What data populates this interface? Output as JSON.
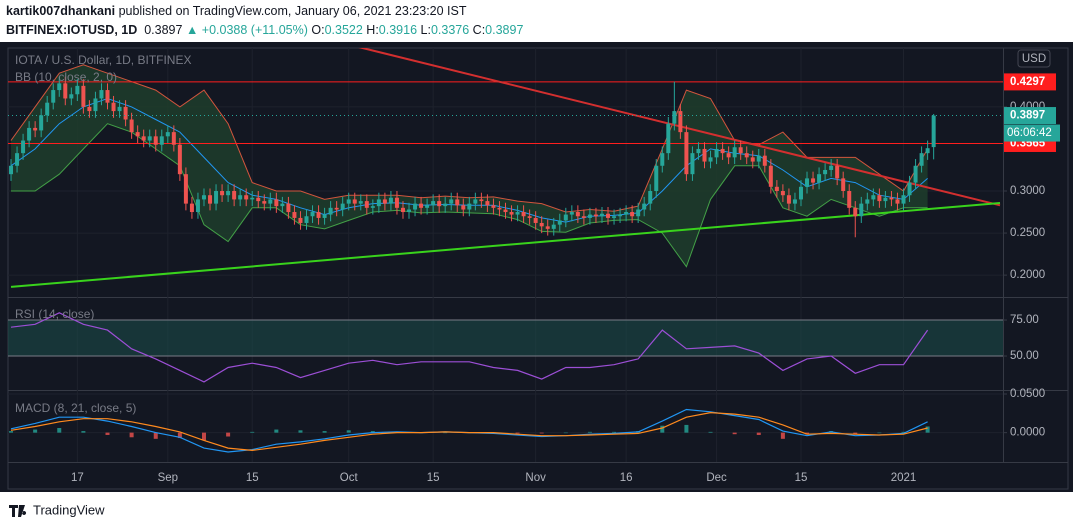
{
  "header": {
    "author": "kartik007dhankani",
    "published": "published on TradingView.com, January 06, 2021 23:23:20 IST",
    "symbol": "BITFINEX:IOTUSD, 1D",
    "change": "▲ +0.0388 (+11.05%)",
    "ohlc_labels": [
      "O:",
      "H:",
      "L:",
      "C:"
    ]
  },
  "footer": {
    "brand": "TradingView"
  },
  "chart_data": [
    {
      "type": "candlestick",
      "title": "IOTA / U.S. Dollar, 1D, BITFINEX",
      "indicator": "BB (10, close, 2, 0)",
      "currency": "USD",
      "countdown": "06:06:42",
      "up_color": "#26a69a",
      "down_color": "#ef5350",
      "grid": true,
      "xlim": [
        -0.5,
        164.5
      ],
      "xticks": [
        {
          "value": 11,
          "label": "17"
        },
        {
          "value": 26,
          "label": "Sep"
        },
        {
          "value": 40,
          "label": "15"
        },
        {
          "value": 56,
          "label": "Oct"
        },
        {
          "value": 70,
          "label": "15"
        },
        {
          "value": 87,
          "label": "Nov"
        },
        {
          "value": 102,
          "label": "16"
        },
        {
          "value": 117,
          "label": "Dec"
        },
        {
          "value": 131,
          "label": "15"
        },
        {
          "value": 148,
          "label": "2021"
        }
      ],
      "ylim": [
        0.174,
        0.47
      ],
      "yticks": [
        {
          "value": 0.2,
          "label": "0.2000"
        },
        {
          "value": 0.25,
          "label": "0.2500"
        },
        {
          "value": 0.3,
          "label": "0.3000"
        },
        {
          "value": 0.4,
          "label": "0.4000"
        }
      ],
      "open": [
        0.32,
        0.33,
        0.345,
        0.36,
        0.375,
        0.372,
        0.39,
        0.405,
        0.42,
        0.428,
        0.41,
        0.415,
        0.425,
        0.4,
        0.395,
        0.41,
        0.42,
        0.405,
        0.395,
        0.4,
        0.385,
        0.37,
        0.365,
        0.36,
        0.365,
        0.355,
        0.365,
        0.37,
        0.355,
        0.32,
        0.285,
        0.275,
        0.29,
        0.295,
        0.285,
        0.3,
        0.295,
        0.3,
        0.29,
        0.295,
        0.29,
        0.292,
        0.288,
        0.285,
        0.29,
        0.282,
        0.285,
        0.275,
        0.268,
        0.262,
        0.27,
        0.275,
        0.268,
        0.272,
        0.28,
        0.278,
        0.285,
        0.29,
        0.285,
        0.288,
        0.28,
        0.282,
        0.29,
        0.285,
        0.292,
        0.28,
        0.275,
        0.278,
        0.285,
        0.28,
        0.283,
        0.288,
        0.282,
        0.285,
        0.29,
        0.283,
        0.278,
        0.285,
        0.29,
        0.288,
        0.283,
        0.28,
        0.278,
        0.275,
        0.272,
        0.275,
        0.27,
        0.268,
        0.262,
        0.258,
        0.255,
        0.26,
        0.265,
        0.272,
        0.275,
        0.27,
        0.268,
        0.272,
        0.27,
        0.273,
        0.268,
        0.27,
        0.272,
        0.275,
        0.27,
        0.278,
        0.285,
        0.3,
        0.33,
        0.345,
        0.38,
        0.395,
        0.37,
        0.32,
        0.345,
        0.35,
        0.335,
        0.34,
        0.35,
        0.345,
        0.34,
        0.352,
        0.345,
        0.34,
        0.335,
        0.342,
        0.33,
        0.305,
        0.3,
        0.295,
        0.285,
        0.29,
        0.305,
        0.315,
        0.31,
        0.32,
        0.325,
        0.33,
        0.315,
        0.3,
        0.28,
        0.27,
        0.285,
        0.29,
        0.295,
        0.288,
        0.292,
        0.29,
        0.285,
        0.295,
        0.31,
        0.33,
        0.345,
        0.3522
      ],
      "high": [
        0.338,
        0.353,
        0.368,
        0.383,
        0.383,
        0.398,
        0.413,
        0.428,
        0.436,
        0.436,
        0.423,
        0.433,
        0.433,
        0.408,
        0.418,
        0.428,
        0.428,
        0.413,
        0.408,
        0.408,
        0.393,
        0.378,
        0.373,
        0.373,
        0.373,
        0.373,
        0.378,
        0.378,
        0.363,
        0.328,
        0.293,
        0.298,
        0.303,
        0.303,
        0.308,
        0.308,
        0.308,
        0.308,
        0.303,
        0.303,
        0.3,
        0.3,
        0.296,
        0.298,
        0.298,
        0.293,
        0.293,
        0.283,
        0.276,
        0.278,
        0.283,
        0.283,
        0.28,
        0.288,
        0.288,
        0.293,
        0.298,
        0.298,
        0.296,
        0.296,
        0.29,
        0.298,
        0.298,
        0.3,
        0.3,
        0.288,
        0.286,
        0.293,
        0.293,
        0.291,
        0.296,
        0.296,
        0.293,
        0.298,
        0.298,
        0.291,
        0.293,
        0.298,
        0.298,
        0.296,
        0.291,
        0.288,
        0.286,
        0.283,
        0.283,
        0.283,
        0.278,
        0.276,
        0.27,
        0.266,
        0.268,
        0.273,
        0.28,
        0.283,
        0.283,
        0.278,
        0.28,
        0.28,
        0.281,
        0.281,
        0.278,
        0.28,
        0.283,
        0.283,
        0.286,
        0.293,
        0.308,
        0.338,
        0.353,
        0.388,
        0.43,
        0.403,
        0.378,
        0.353,
        0.358,
        0.358,
        0.348,
        0.358,
        0.358,
        0.353,
        0.36,
        0.36,
        0.353,
        0.348,
        0.35,
        0.35,
        0.338,
        0.313,
        0.308,
        0.303,
        0.298,
        0.313,
        0.323,
        0.323,
        0.328,
        0.333,
        0.338,
        0.338,
        0.323,
        0.308,
        0.288,
        0.293,
        0.298,
        0.303,
        0.303,
        0.3,
        0.3,
        0.298,
        0.303,
        0.318,
        0.338,
        0.353,
        0.36,
        0.3916
      ],
      "low": [
        0.312,
        0.322,
        0.337,
        0.352,
        0.364,
        0.364,
        0.382,
        0.397,
        0.412,
        0.402,
        0.402,
        0.407,
        0.392,
        0.387,
        0.387,
        0.402,
        0.397,
        0.387,
        0.387,
        0.377,
        0.362,
        0.357,
        0.352,
        0.352,
        0.347,
        0.347,
        0.357,
        0.347,
        0.312,
        0.277,
        0.267,
        0.267,
        0.282,
        0.277,
        0.277,
        0.287,
        0.287,
        0.282,
        0.282,
        0.282,
        0.282,
        0.28,
        0.277,
        0.277,
        0.274,
        0.274,
        0.267,
        0.26,
        0.254,
        0.254,
        0.262,
        0.26,
        0.26,
        0.264,
        0.27,
        0.27,
        0.277,
        0.277,
        0.277,
        0.272,
        0.272,
        0.274,
        0.277,
        0.277,
        0.272,
        0.267,
        0.267,
        0.27,
        0.272,
        0.272,
        0.275,
        0.274,
        0.274,
        0.277,
        0.275,
        0.27,
        0.27,
        0.277,
        0.28,
        0.275,
        0.272,
        0.27,
        0.267,
        0.264,
        0.264,
        0.262,
        0.26,
        0.254,
        0.25,
        0.247,
        0.247,
        0.252,
        0.257,
        0.264,
        0.262,
        0.26,
        0.26,
        0.262,
        0.262,
        0.26,
        0.26,
        0.262,
        0.264,
        0.262,
        0.262,
        0.27,
        0.277,
        0.292,
        0.322,
        0.337,
        0.372,
        0.362,
        0.312,
        0.312,
        0.337,
        0.327,
        0.327,
        0.332,
        0.337,
        0.332,
        0.332,
        0.337,
        0.332,
        0.327,
        0.327,
        0.322,
        0.297,
        0.292,
        0.287,
        0.277,
        0.277,
        0.282,
        0.297,
        0.302,
        0.302,
        0.312,
        0.317,
        0.307,
        0.292,
        0.272,
        0.245,
        0.262,
        0.277,
        0.282,
        0.28,
        0.28,
        0.282,
        0.277,
        0.277,
        0.287,
        0.302,
        0.322,
        0.337,
        0.3376
      ],
      "close": [
        0.33,
        0.345,
        0.36,
        0.375,
        0.372,
        0.39,
        0.405,
        0.42,
        0.428,
        0.41,
        0.415,
        0.425,
        0.4,
        0.395,
        0.41,
        0.42,
        0.405,
        0.395,
        0.4,
        0.385,
        0.37,
        0.365,
        0.36,
        0.365,
        0.355,
        0.365,
        0.37,
        0.355,
        0.32,
        0.285,
        0.275,
        0.29,
        0.295,
        0.285,
        0.3,
        0.295,
        0.3,
        0.29,
        0.295,
        0.29,
        0.292,
        0.288,
        0.285,
        0.29,
        0.282,
        0.285,
        0.275,
        0.268,
        0.262,
        0.27,
        0.275,
        0.268,
        0.272,
        0.28,
        0.278,
        0.285,
        0.29,
        0.285,
        0.288,
        0.28,
        0.282,
        0.29,
        0.285,
        0.292,
        0.28,
        0.275,
        0.278,
        0.285,
        0.28,
        0.283,
        0.288,
        0.282,
        0.285,
        0.29,
        0.283,
        0.278,
        0.285,
        0.29,
        0.288,
        0.283,
        0.28,
        0.278,
        0.275,
        0.272,
        0.275,
        0.27,
        0.268,
        0.262,
        0.258,
        0.255,
        0.26,
        0.265,
        0.272,
        0.275,
        0.27,
        0.268,
        0.272,
        0.27,
        0.273,
        0.268,
        0.27,
        0.272,
        0.275,
        0.27,
        0.278,
        0.285,
        0.3,
        0.33,
        0.345,
        0.38,
        0.395,
        0.37,
        0.32,
        0.345,
        0.35,
        0.335,
        0.34,
        0.35,
        0.345,
        0.34,
        0.352,
        0.345,
        0.34,
        0.335,
        0.342,
        0.33,
        0.305,
        0.3,
        0.295,
        0.285,
        0.29,
        0.305,
        0.315,
        0.31,
        0.32,
        0.325,
        0.33,
        0.315,
        0.3,
        0.28,
        0.27,
        0.285,
        0.29,
        0.295,
        0.288,
        0.292,
        0.29,
        0.285,
        0.295,
        0.31,
        0.33,
        0.345,
        0.3509,
        0.3897
      ],
      "bands": {
        "x": [
          0,
          4,
          8,
          12,
          16,
          20,
          24,
          28,
          32,
          36,
          40,
          44,
          48,
          52,
          56,
          60,
          64,
          68,
          72,
          76,
          80,
          84,
          88,
          92,
          96,
          100,
          104,
          108,
          112,
          116,
          120,
          124,
          128,
          132,
          136,
          140,
          144,
          148,
          152
        ],
        "upper": [
          0.36,
          0.4,
          0.44,
          0.45,
          0.44,
          0.43,
          0.42,
          0.4,
          0.42,
          0.38,
          0.31,
          0.3,
          0.3,
          0.29,
          0.295,
          0.295,
          0.295,
          0.292,
          0.294,
          0.292,
          0.293,
          0.288,
          0.285,
          0.275,
          0.278,
          0.276,
          0.282,
          0.35,
          0.42,
          0.41,
          0.36,
          0.355,
          0.37,
          0.34,
          0.34,
          0.34,
          0.32,
          0.3,
          0.35
        ],
        "basis": [
          0.33,
          0.35,
          0.38,
          0.4,
          0.41,
          0.4,
          0.385,
          0.37,
          0.34,
          0.31,
          0.295,
          0.29,
          0.28,
          0.272,
          0.28,
          0.285,
          0.286,
          0.283,
          0.284,
          0.283,
          0.283,
          0.277,
          0.268,
          0.263,
          0.27,
          0.271,
          0.274,
          0.3,
          0.33,
          0.35,
          0.345,
          0.342,
          0.325,
          0.305,
          0.315,
          0.31,
          0.295,
          0.29,
          0.315
        ],
        "lower": [
          0.3,
          0.3,
          0.32,
          0.35,
          0.38,
          0.37,
          0.35,
          0.33,
          0.26,
          0.24,
          0.28,
          0.28,
          0.26,
          0.255,
          0.265,
          0.275,
          0.277,
          0.274,
          0.275,
          0.274,
          0.273,
          0.266,
          0.252,
          0.251,
          0.262,
          0.265,
          0.266,
          0.25,
          0.21,
          0.29,
          0.33,
          0.33,
          0.28,
          0.27,
          0.29,
          0.28,
          0.27,
          0.28,
          0.28
        ],
        "upper_color": "#d2553d",
        "basis_color": "#2196f3",
        "lower_color": "#43a047",
        "fill": "#1f3d2b"
      },
      "hlines": [
        {
          "value": 0.4297,
          "color": "#ff1e1e"
        },
        {
          "value": 0.3565,
          "color": "#ff1e1e"
        }
      ],
      "trendlines": [
        {
          "color": "#d32f2f",
          "x": [
            56,
            164
          ],
          "y": [
            0.474,
            0.283
          ]
        },
        {
          "color": "#39d31c",
          "x": [
            0,
            164
          ],
          "y": [
            0.186,
            0.2857
          ]
        }
      ],
      "last_color": "#26a69a"
    },
    {
      "type": "line",
      "title": "RSI (14, close)",
      "grid": true,
      "band": true,
      "band_color": "#1a4a48",
      "ylim": [
        26.4,
        90.3
      ],
      "yticks": [
        {
          "value": 50,
          "label": "50.00"
        },
        {
          "value": 75,
          "label": "75.00"
        }
      ],
      "x": [
        0,
        4,
        8,
        12,
        16,
        20,
        24,
        28,
        32,
        36,
        40,
        44,
        48,
        52,
        56,
        60,
        64,
        68,
        72,
        76,
        80,
        84,
        88,
        92,
        96,
        100,
        104,
        108,
        112,
        116,
        120,
        124,
        128,
        132,
        136,
        140,
        144,
        148,
        152
      ],
      "series": [
        {
          "color": "#9c4fd6",
          "values": [
            70,
            72,
            80,
            72,
            68,
            55,
            48,
            40,
            32,
            42,
            45,
            42,
            35,
            40,
            45,
            47,
            44,
            46,
            46,
            46,
            42,
            40,
            34,
            42,
            42,
            44,
            48,
            68,
            55,
            56,
            57,
            52,
            40,
            48,
            50,
            38,
            44,
            44,
            68
          ]
        }
      ]
    },
    {
      "type": "line",
      "title": "MACD (8, 21, close, 5)",
      "grid": true,
      "ylim": [
        -0.038,
        0.0539
      ],
      "yticks": [
        {
          "value": 0,
          "label": "0.0000"
        },
        {
          "value": 0.05,
          "label": "0.0500"
        }
      ],
      "x": [
        0,
        4,
        8,
        12,
        16,
        20,
        24,
        28,
        32,
        36,
        40,
        44,
        48,
        52,
        56,
        60,
        64,
        68,
        72,
        76,
        80,
        84,
        88,
        92,
        96,
        100,
        104,
        108,
        112,
        116,
        120,
        124,
        128,
        132,
        136,
        140,
        144,
        148,
        152
      ],
      "histogram": {
        "colors": [
          "#26a69a",
          "#ef5350"
        ],
        "values": [
          0.002,
          0.004,
          0.006,
          0.002,
          -0.003,
          -0.006,
          -0.008,
          -0.007,
          -0.01,
          -0.005,
          0.001,
          0.004,
          0.003,
          0.002,
          0.003,
          0.002,
          0.001,
          0.0,
          0.0,
          0.0,
          -0.001,
          -0.001,
          -0.001,
          0.0,
          0.001,
          0.001,
          0.002,
          0.009,
          0.01,
          0.001,
          -0.002,
          -0.003,
          -0.008,
          -0.002,
          0.002,
          -0.002,
          0.0,
          0.001,
          0.008
        ]
      },
      "series": [
        {
          "color": "#2196f3",
          "values": [
            0.005,
            0.012,
            0.02,
            0.02,
            0.015,
            0.008,
            0.0,
            -0.006,
            -0.02,
            -0.025,
            -0.022,
            -0.015,
            -0.012,
            -0.008,
            -0.003,
            0.0,
            0.001,
            0.0,
            0.001,
            0.0,
            -0.001,
            -0.003,
            -0.005,
            -0.004,
            -0.002,
            -0.001,
            0.001,
            0.015,
            0.03,
            0.027,
            0.022,
            0.017,
            0.002,
            -0.004,
            0.001,
            -0.004,
            -0.003,
            -0.001,
            0.014
          ]
        },
        {
          "color": "#ff8a1e",
          "values": [
            0.003,
            0.008,
            0.014,
            0.018,
            0.018,
            0.014,
            0.008,
            0.001,
            -0.01,
            -0.02,
            -0.023,
            -0.019,
            -0.015,
            -0.01,
            -0.006,
            -0.002,
            0.0,
            0.0,
            0.001,
            0.0,
            0.0,
            -0.002,
            -0.004,
            -0.004,
            -0.003,
            -0.002,
            -0.001,
            0.006,
            0.02,
            0.026,
            0.024,
            0.02,
            0.01,
            -0.002,
            -0.001,
            -0.002,
            -0.003,
            -0.002,
            0.006
          ]
        }
      ]
    }
  ]
}
